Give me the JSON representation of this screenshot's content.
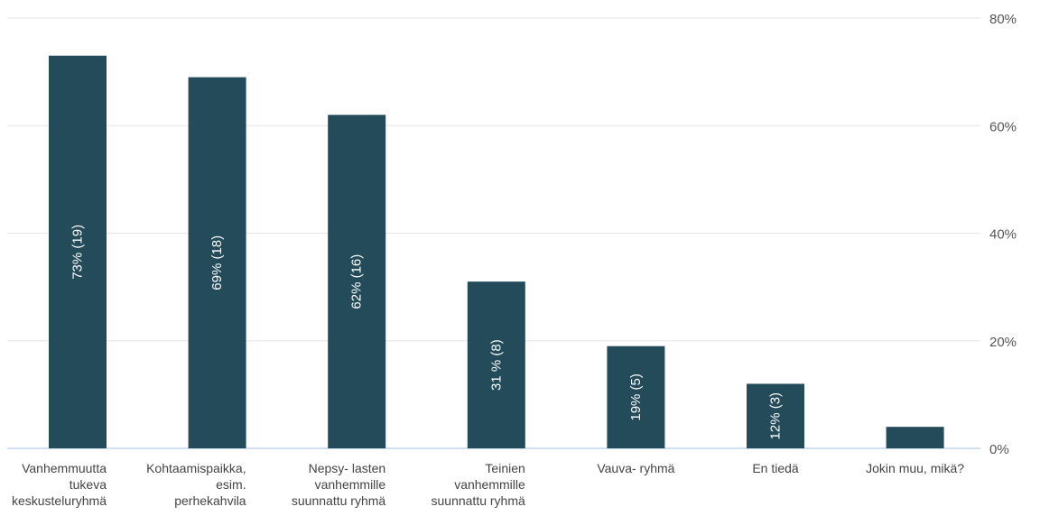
{
  "chart_data": {
    "type": "bar",
    "orientation": "vertical",
    "bar_color": "#234B5A",
    "grid_color": "#E5E5E5",
    "baseline_color": "#BFD3EC",
    "ylim": [
      0,
      80
    ],
    "yticks": [
      0,
      20,
      40,
      60,
      80
    ],
    "ytick_labels": [
      "0%",
      "20%",
      "40%",
      "60%",
      "80%"
    ],
    "y_axis_position": "right",
    "grid": true,
    "categories": [
      "Vanhemmuutta tukeva keskusteluryhmä",
      "Kohtaamispaikka, esim. perhekahvila",
      "Nepsy- lasten vanhemmille suunnattu ryhmä",
      "Teinien vanhemmille suunnattu ryhmä",
      "Vauva- ryhmä",
      "En tiedä",
      "Jokin muu, mikä?"
    ],
    "category_label_lines": [
      [
        "Vanhemmuutta",
        "tukeva",
        "keskusteluryhmä"
      ],
      [
        "Kohtaamispaikka,",
        "esim.",
        "perhekahvila"
      ],
      [
        "Nepsy- lasten",
        "vanhemmille",
        "suunnattu ryhmä"
      ],
      [
        "Teinien",
        "vanhemmille",
        "suunnattu ryhmä"
      ],
      [
        "Vauva- ryhmä"
      ],
      [
        "En tiedä"
      ],
      [
        "Jokin muu, mikä?"
      ]
    ],
    "values": [
      73,
      69,
      62,
      31,
      19,
      12,
      4
    ],
    "data_labels": [
      "73% (19)",
      "69% (18)",
      "62% (16)",
      "31 % (8)",
      "19% (5)",
      "12% (3)",
      ""
    ]
  }
}
